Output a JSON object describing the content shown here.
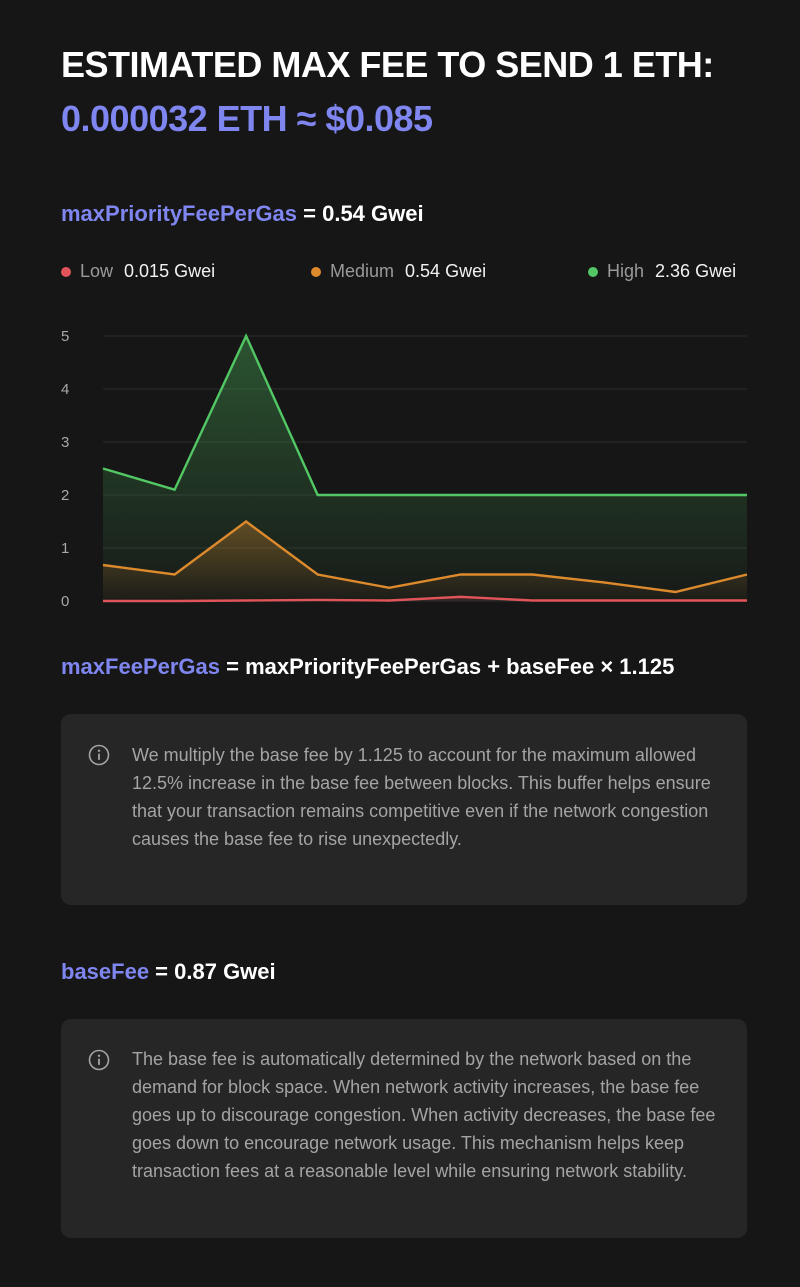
{
  "header": {
    "title": "ESTIMATED MAX FEE TO SEND 1 ETH:",
    "estimate": "0.000032 ETH ≈ $0.085"
  },
  "priority_fee": {
    "label": "maxPriorityFeePerGas",
    "value_text": " = 0.54 Gwei"
  },
  "legend": [
    {
      "name": "Low",
      "value": "0.015 Gwei",
      "color": "#e0545a"
    },
    {
      "name": "Medium",
      "value": "0.54 Gwei",
      "color": "#dd8a2d"
    },
    {
      "name": "High",
      "value": "2.36 Gwei",
      "color": "#52c764"
    }
  ],
  "chart_data": {
    "type": "line",
    "x": [
      1,
      2,
      3,
      4,
      5,
      6,
      7,
      8,
      9,
      10
    ],
    "ylim": [
      0,
      5
    ],
    "yticks": [
      0,
      1,
      2,
      3,
      4,
      5
    ],
    "grid": true,
    "series": [
      {
        "name": "High",
        "color": "#52c764",
        "values": [
          2.5,
          2.1,
          5.0,
          2.0,
          2.0,
          2.0,
          2.0,
          2.0,
          2.0,
          2.0
        ]
      },
      {
        "name": "Medium",
        "color": "#dd8a2d",
        "values": [
          0.68,
          0.5,
          1.5,
          0.5,
          0.25,
          0.5,
          0.5,
          0.35,
          0.17,
          0.5
        ]
      },
      {
        "name": "Low",
        "color": "#e0545a",
        "values": [
          0.0,
          0.0,
          0.01,
          0.02,
          0.01,
          0.08,
          0.01,
          0.01,
          0.01,
          0.01
        ]
      }
    ]
  },
  "formula": {
    "label": "maxFeePerGas",
    "rest": " = maxPriorityFeePerGas + baseFee × 1.125"
  },
  "info_1": {
    "icon": "info-icon",
    "text": "We multiply the base fee by 1.125 to account for the maximum allowed 12.5% increase in the base fee between blocks. This buffer helps ensure that your transaction remains competitive even if the network congestion causes the base fee to rise unexpectedly."
  },
  "base_fee": {
    "label": "baseFee",
    "value_text": " = 0.87 Gwei"
  },
  "info_2": {
    "icon": "info-icon",
    "text": "The base fee is automatically determined by the network based on the demand for block space. When network activity increases, the base fee goes up to discourage congestion. When activity decreases, the base fee goes down to encourage network usage. This mechanism helps keep transaction fees at a reasonable level while ensuring network stability."
  },
  "colors": {
    "accent": "#7f86f0",
    "background": "#161616",
    "card": "#262626"
  }
}
